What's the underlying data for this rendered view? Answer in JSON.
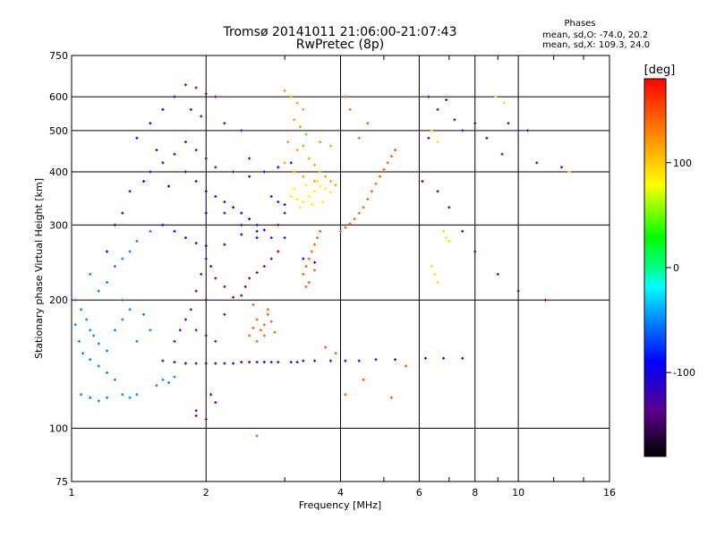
{
  "chart_data": {
    "type": "scatter",
    "title": "Tromsø 20141011 21:06:00-21:07:43",
    "subtitle": "RwPretec (8p)",
    "xlabel": "Frequency [MHz]",
    "ylabel": "Stationary phase Virtual Height [km]",
    "x_scale": "log",
    "y_scale": "log",
    "xlim": [
      1,
      16
    ],
    "ylim": [
      75,
      750
    ],
    "x_ticks": [
      1,
      2,
      4,
      6,
      8,
      10,
      16
    ],
    "y_ticks": [
      75,
      100,
      200,
      300,
      400,
      500,
      600,
      750
    ],
    "grid": true,
    "stats": {
      "heading": "Phases",
      "line_o": "mean, sd,O: -74.0, 20.2",
      "line_x": "mean, sd,X: 109.3, 24.0"
    },
    "colorbar": {
      "label": "[deg]",
      "range": [
        -180,
        180
      ],
      "ticks": [
        -100,
        0,
        100
      ]
    },
    "series": [
      {
        "phase_deg": -130,
        "points": [
          [
            1.8,
            640
          ],
          [
            1.9,
            630
          ],
          [
            2.0,
            610
          ],
          [
            2.1,
            600
          ],
          [
            1.85,
            560
          ],
          [
            1.95,
            540
          ],
          [
            2.2,
            520
          ],
          [
            2.4,
            500
          ],
          [
            1.8,
            470
          ],
          [
            1.9,
            450
          ],
          [
            2.0,
            430
          ],
          [
            2.1,
            410
          ],
          [
            2.3,
            400
          ],
          [
            2.5,
            430
          ],
          [
            2.2,
            320
          ],
          [
            2.4,
            300
          ],
          [
            2.6,
            290
          ],
          [
            2.8,
            280
          ],
          [
            2.9,
            300
          ],
          [
            3.0,
            320
          ],
          [
            3.0,
            280
          ],
          [
            2.9,
            260
          ],
          [
            2.8,
            250
          ],
          [
            2.7,
            240
          ],
          [
            2.6,
            232
          ],
          [
            2.5,
            225
          ],
          [
            2.45,
            215
          ],
          [
            2.4,
            205
          ],
          [
            2.3,
            203
          ],
          [
            2.2,
            215
          ],
          [
            2.1,
            225
          ],
          [
            2.05,
            240
          ],
          [
            2.0,
            250
          ],
          [
            1.95,
            230
          ],
          [
            1.9,
            210
          ],
          [
            1.85,
            190
          ],
          [
            1.8,
            180
          ],
          [
            1.75,
            170
          ],
          [
            1.7,
            160
          ],
          [
            1.9,
            170
          ],
          [
            2.0,
            165
          ],
          [
            2.1,
            160
          ],
          [
            2.0,
            200
          ],
          [
            2.2,
            185
          ],
          [
            1.9,
            110
          ],
          [
            2.0,
            105
          ],
          [
            2.1,
            115
          ],
          [
            2.05,
            120
          ],
          [
            1.9,
            107
          ]
        ]
      },
      {
        "phase_deg": -90,
        "points": [
          [
            1.35,
            360
          ],
          [
            1.45,
            380
          ],
          [
            1.5,
            400
          ],
          [
            1.6,
            420
          ],
          [
            1.7,
            440
          ],
          [
            1.8,
            400
          ],
          [
            1.9,
            380
          ],
          [
            2.0,
            360
          ],
          [
            2.1,
            350
          ],
          [
            2.2,
            340
          ],
          [
            2.3,
            330
          ],
          [
            2.4,
            320
          ],
          [
            2.5,
            310
          ],
          [
            2.6,
            300
          ],
          [
            2.7,
            292
          ],
          [
            1.6,
            300
          ],
          [
            1.7,
            290
          ],
          [
            1.8,
            280
          ],
          [
            1.9,
            272
          ],
          [
            2.0,
            268
          ],
          [
            1.5,
            520
          ],
          [
            1.6,
            560
          ],
          [
            1.7,
            600
          ],
          [
            1.4,
            480
          ],
          [
            1.3,
            320
          ],
          [
            1.25,
            300
          ],
          [
            1.2,
            260
          ],
          [
            1.55,
            450
          ],
          [
            1.65,
            370
          ],
          [
            2.5,
            390
          ],
          [
            2.7,
            400
          ],
          [
            2.9,
            410
          ],
          [
            3.1,
            420
          ],
          [
            2.8,
            350
          ],
          [
            2.9,
            340
          ],
          [
            3.0,
            335
          ],
          [
            2.6,
            280
          ],
          [
            2.2,
            270
          ],
          [
            2.4,
            285
          ],
          [
            2.0,
            320
          ],
          [
            3.3,
            250
          ],
          [
            3.5,
            245
          ]
        ]
      },
      {
        "phase_deg": -55,
        "points": [
          [
            1.02,
            200
          ],
          [
            1.05,
            190
          ],
          [
            1.08,
            180
          ],
          [
            1.1,
            170
          ],
          [
            1.12,
            165
          ],
          [
            1.15,
            158
          ],
          [
            1.2,
            152
          ],
          [
            1.02,
            175
          ],
          [
            1.04,
            160
          ],
          [
            1.06,
            150
          ],
          [
            1.1,
            145
          ],
          [
            1.15,
            140
          ],
          [
            1.2,
            135
          ],
          [
            1.25,
            130
          ],
          [
            1.05,
            120
          ],
          [
            1.1,
            118
          ],
          [
            1.15,
            116
          ],
          [
            1.2,
            118
          ],
          [
            1.3,
            120
          ],
          [
            1.35,
            118
          ],
          [
            1.4,
            120
          ],
          [
            1.2,
            220
          ],
          [
            1.25,
            240
          ],
          [
            1.3,
            250
          ],
          [
            1.35,
            260
          ],
          [
            1.4,
            275
          ],
          [
            1.5,
            290
          ],
          [
            1.3,
            200
          ],
          [
            1.35,
            190
          ],
          [
            1.45,
            185
          ],
          [
            1.6,
            130
          ],
          [
            1.65,
            128
          ],
          [
            1.7,
            132
          ],
          [
            1.55,
            126
          ],
          [
            1.1,
            230
          ],
          [
            1.15,
            210
          ],
          [
            1.3,
            180
          ],
          [
            1.25,
            170
          ],
          [
            1.4,
            160
          ],
          [
            1.5,
            170
          ]
        ]
      },
      {
        "phase_deg": -110,
        "points": [
          [
            1.6,
            144
          ],
          [
            1.7,
            143
          ],
          [
            1.8,
            142
          ],
          [
            1.9,
            142
          ],
          [
            2.0,
            142
          ],
          [
            2.1,
            142
          ],
          [
            2.2,
            142
          ],
          [
            2.3,
            142
          ],
          [
            2.4,
            143
          ],
          [
            2.5,
            143
          ],
          [
            2.6,
            143
          ],
          [
            2.7,
            143
          ],
          [
            2.8,
            143
          ],
          [
            2.9,
            143
          ],
          [
            3.1,
            143
          ],
          [
            3.2,
            143
          ],
          [
            3.3,
            144
          ],
          [
            3.5,
            144
          ],
          [
            3.8,
            144
          ],
          [
            4.1,
            144
          ],
          [
            4.4,
            144
          ],
          [
            4.8,
            145
          ],
          [
            5.3,
            145
          ],
          [
            6.2,
            146
          ],
          [
            6.8,
            146
          ],
          [
            7.5,
            146
          ]
        ]
      },
      {
        "phase_deg": 120,
        "points": [
          [
            3.0,
            620
          ],
          [
            3.1,
            600
          ],
          [
            3.2,
            580
          ],
          [
            3.3,
            560
          ],
          [
            3.15,
            530
          ],
          [
            3.25,
            510
          ],
          [
            3.35,
            490
          ],
          [
            3.05,
            470
          ],
          [
            3.2,
            450
          ],
          [
            3.4,
            430
          ],
          [
            3.5,
            415
          ],
          [
            3.6,
            400
          ],
          [
            3.7,
            390
          ],
          [
            3.8,
            380
          ],
          [
            3.9,
            372
          ],
          [
            3.3,
            460
          ],
          [
            3.6,
            470
          ],
          [
            3.8,
            460
          ],
          [
            3.0,
            420
          ],
          [
            3.15,
            400
          ],
          [
            3.3,
            390
          ],
          [
            3.5,
            380
          ]
        ]
      },
      {
        "phase_deg": 85,
        "points": [
          [
            3.1,
            350
          ],
          [
            3.2,
            345
          ],
          [
            3.3,
            340
          ],
          [
            3.4,
            350
          ],
          [
            3.5,
            360
          ],
          [
            3.6,
            370
          ],
          [
            3.7,
            365
          ],
          [
            3.8,
            358
          ],
          [
            3.25,
            330
          ],
          [
            3.45,
            335
          ],
          [
            3.65,
            340
          ],
          [
            3.15,
            365
          ],
          [
            3.35,
            372
          ],
          [
            3.55,
            380
          ]
        ]
      },
      {
        "phase_deg": 145,
        "points": [
          [
            3.3,
            230
          ],
          [
            3.35,
            240
          ],
          [
            3.4,
            250
          ],
          [
            3.45,
            260
          ],
          [
            3.5,
            270
          ],
          [
            3.55,
            280
          ],
          [
            3.6,
            290
          ],
          [
            3.4,
            220
          ],
          [
            3.35,
            215
          ],
          [
            3.5,
            235
          ],
          [
            4.0,
            290
          ],
          [
            4.1,
            296
          ],
          [
            4.2,
            302
          ],
          [
            4.3,
            310
          ],
          [
            4.4,
            320
          ],
          [
            4.5,
            330
          ],
          [
            4.6,
            345
          ],
          [
            4.7,
            360
          ],
          [
            4.8,
            375
          ],
          [
            4.9,
            390
          ],
          [
            5.0,
            405
          ],
          [
            5.1,
            420
          ],
          [
            5.2,
            435
          ],
          [
            5.3,
            450
          ],
          [
            4.4,
            480
          ],
          [
            4.6,
            520
          ],
          [
            4.2,
            560
          ],
          [
            4.1,
            600
          ],
          [
            2.5,
            165
          ],
          [
            2.55,
            172
          ],
          [
            2.6,
            180
          ],
          [
            2.65,
            170
          ],
          [
            2.7,
            175
          ],
          [
            2.75,
            185
          ],
          [
            2.6,
            160
          ],
          [
            2.7,
            165
          ],
          [
            2.8,
            178
          ],
          [
            2.85,
            168
          ],
          [
            2.55,
            195
          ],
          [
            2.75,
            190
          ]
        ]
      },
      {
        "phase_deg": -140,
        "points": [
          [
            6.3,
            600
          ],
          [
            6.6,
            560
          ],
          [
            6.9,
            590
          ],
          [
            7.2,
            530
          ],
          [
            7.5,
            500
          ],
          [
            8.0,
            520
          ],
          [
            8.5,
            480
          ],
          [
            9.5,
            520
          ],
          [
            10.5,
            500
          ],
          [
            6.1,
            380
          ],
          [
            6.6,
            360
          ],
          [
            7.0,
            330
          ],
          [
            7.5,
            290
          ],
          [
            8.0,
            260
          ],
          [
            9.0,
            230
          ],
          [
            10.0,
            210
          ],
          [
            11.5,
            200
          ],
          [
            6.3,
            480
          ],
          [
            9.2,
            440
          ],
          [
            11.0,
            420
          ],
          [
            12.5,
            410
          ]
        ]
      },
      {
        "phase_deg": 65,
        "points": [
          [
            6.8,
            290
          ],
          [
            6.9,
            280
          ],
          [
            7.0,
            275
          ],
          [
            6.4,
            240
          ],
          [
            6.5,
            230
          ],
          [
            6.6,
            220
          ],
          [
            8.9,
            600
          ],
          [
            9.3,
            580
          ],
          [
            13.0,
            400
          ],
          [
            6.4,
            500
          ],
          [
            6.6,
            470
          ]
        ]
      },
      {
        "phase_deg": 150,
        "points": [
          [
            2.6,
            96
          ],
          [
            4.1,
            120
          ],
          [
            4.5,
            130
          ],
          [
            5.2,
            118
          ],
          [
            3.7,
            155
          ],
          [
            3.9,
            150
          ],
          [
            5.6,
            140
          ]
        ]
      }
    ]
  }
}
